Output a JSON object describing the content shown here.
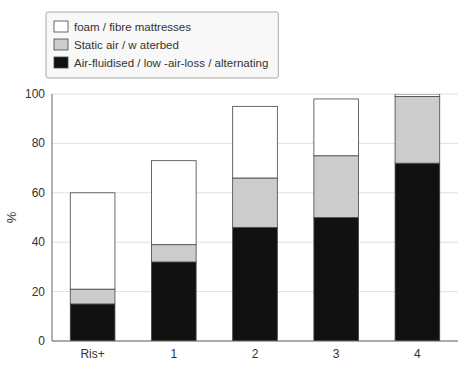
{
  "chart_data": {
    "type": "bar",
    "stacked": true,
    "ylabel": "%",
    "categories": [
      "Ris+",
      "1",
      "2",
      "3",
      "4"
    ],
    "series": [
      {
        "name": "Air-fluidised / low -air-loss / alternating",
        "color": "#111111",
        "values": [
          15,
          32,
          46,
          50,
          72
        ]
      },
      {
        "name": "Static air / w aterbed",
        "color": "#cccccc",
        "values": [
          6,
          7,
          20,
          25,
          27
        ]
      },
      {
        "name": "foam / fibre mattresses",
        "color": "#ffffff",
        "values": [
          39,
          34,
          29,
          23,
          1
        ]
      }
    ],
    "ylim": [
      0,
      100
    ],
    "yticks": [
      0,
      20,
      40,
      60,
      80,
      100
    ],
    "grid": true,
    "legend": "top"
  }
}
